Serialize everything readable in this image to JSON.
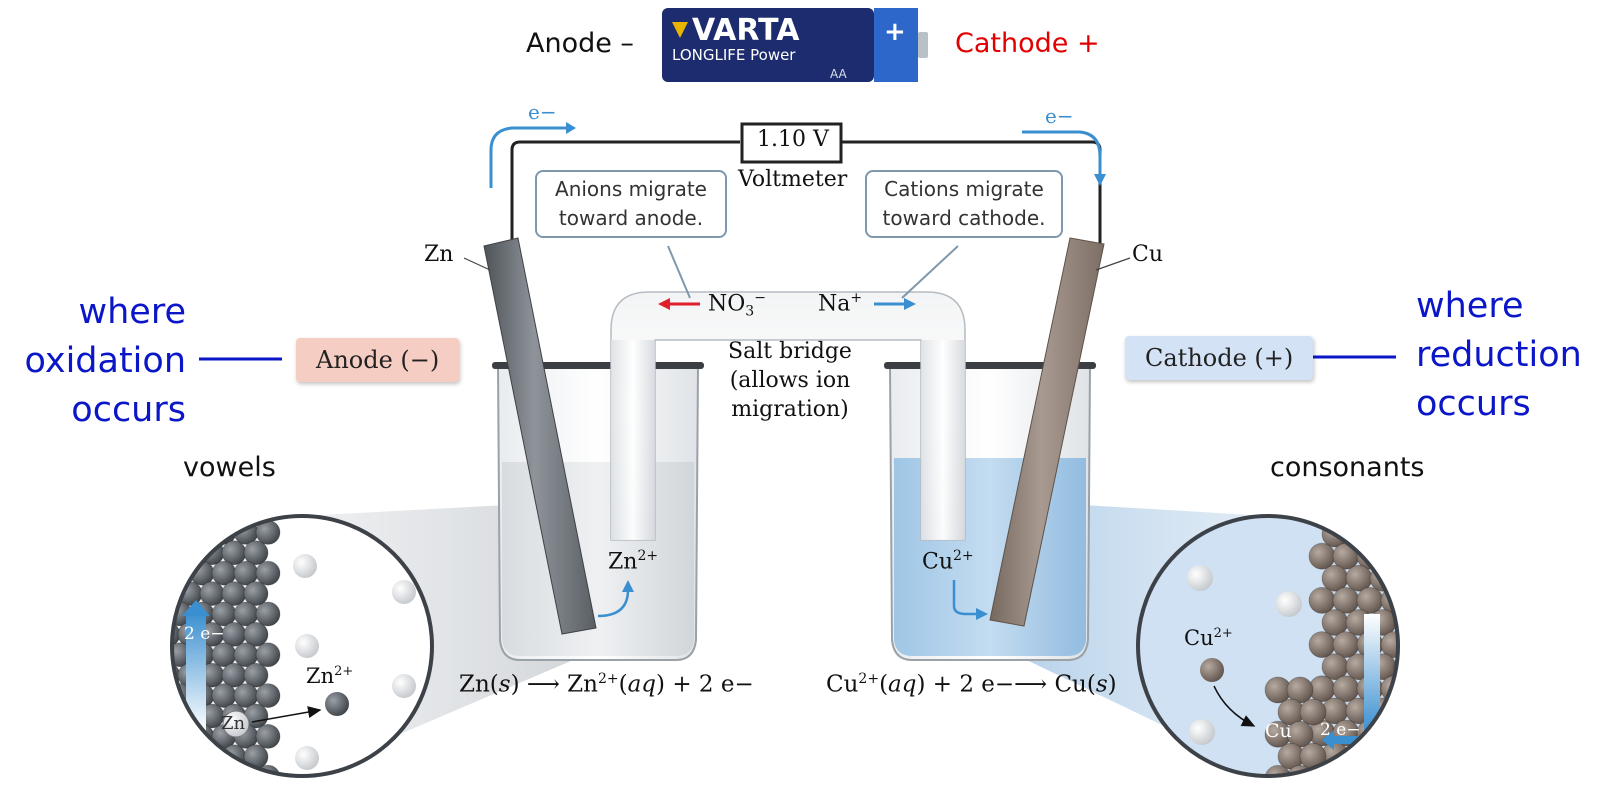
{
  "battery": {
    "anode_label": "Anode –",
    "cathode_label": "Cathode +",
    "brand": "VARTA",
    "line": "LONGLIFE Power",
    "size": "AA",
    "plus_symbol": "+"
  },
  "circuit": {
    "voltage": "1.10 V",
    "voltmeter_label": "Voltmeter",
    "electron_left": "e−",
    "electron_right": "e−",
    "left_electrode": "Zn",
    "right_electrode": "Cu"
  },
  "callouts": {
    "anions_line1": "Anions migrate",
    "anions_line2": "toward anode.",
    "cations_line1": "Cations migrate",
    "cations_line2": "toward cathode."
  },
  "bridge": {
    "anion_base": "NO",
    "anion_sub": "3",
    "anion_sup": "−",
    "cation_base": "Na",
    "cation_sup": "+",
    "line1": "Salt bridge",
    "line2": "(allows ion",
    "line3": "migration)"
  },
  "tags": {
    "anode": "Anode (−)",
    "cathode": "Cathode (+)"
  },
  "notes": {
    "left_line1": "where",
    "left_line2": "oxidation",
    "left_line3": "occurs",
    "right_line1": "where",
    "right_line2": "reduction",
    "right_line3": "occurs",
    "vowels": "vowels",
    "consonants": "consonants"
  },
  "ions": {
    "zn_base": "Zn",
    "zn_sup": "2+",
    "cu_base": "Cu",
    "cu_sup": "2+",
    "zn_atom": "Zn",
    "cu_atom": "Cu",
    "two_e_left": "2 e−",
    "two_e_right": "2 e−"
  },
  "equations": {
    "left": "Zn(s) → Zn2+(aq) + 2 e−",
    "left_reactant": "Zn(",
    "left_state1": "s",
    "left_mid": ") ⟶ Zn",
    "left_sup": "2+",
    "left_paren": "(",
    "left_state2": "aq",
    "left_tail": ") + 2 e−",
    "right_base": "Cu",
    "right_sup": "2+",
    "right_paren": "(",
    "right_state1": "aq",
    "right_mid": ") + 2 e−⟶ Cu(",
    "right_state2": "s",
    "right_tail": ")"
  },
  "colors": {
    "blue_note": "#0a16c8",
    "cathode_red": "#e00000",
    "anode_tag_bg": "#f6cdc2",
    "cathode_tag_bg": "#d4e2f6",
    "arrow_red": "#e0202a",
    "arrow_blue": "#3a8fd0",
    "copper_solution": "#a8cdea",
    "zinc_rod": "#6d7278",
    "copper_rod": "#8c7e74"
  }
}
